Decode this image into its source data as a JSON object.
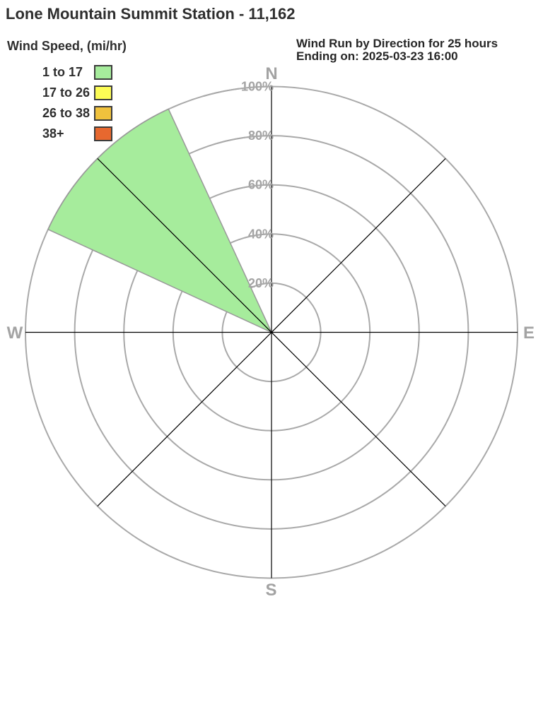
{
  "title": "Lone Mountain Summit Station - 11,162",
  "legend": {
    "title": "Wind Speed, (mi/hr)",
    "bins": [
      {
        "label": "1 to 17",
        "color": "#a6ec9c"
      },
      {
        "label": "17 to 26",
        "color": "#fcfc55"
      },
      {
        "label": "26 to 38",
        "color": "#f0c23d"
      },
      {
        "label": "38+",
        "color": "#e7682f"
      }
    ]
  },
  "header_right": {
    "line1": "Wind Run by Direction for 25 hours",
    "line2": "Ending on: 2025-03-23 16:00"
  },
  "chart_data": {
    "type": "wind_rose",
    "title": "Wind Run by Direction for 25 hours",
    "subtitle": "Ending on: 2025-03-23 16:00",
    "value_unit": "percent of wind run",
    "compass_labels": [
      "N",
      "E",
      "S",
      "W"
    ],
    "radial_axis": {
      "ticks": [
        "20%",
        "40%",
        "60%",
        "80%",
        "100%"
      ],
      "tick_values": [
        20,
        40,
        60,
        80,
        100
      ],
      "range": [
        0,
        100
      ]
    },
    "directions": [
      "N",
      "NE",
      "E",
      "SE",
      "S",
      "SW",
      "W",
      "NW"
    ],
    "sector_width_deg": 40.5,
    "series": [
      {
        "name": "1 to 17",
        "color": "#a6ec9c",
        "values": [
          0,
          0,
          0,
          0,
          0,
          0,
          0,
          100
        ]
      },
      {
        "name": "17 to 26",
        "color": "#fcfc55",
        "values": [
          0,
          0,
          0,
          0,
          0,
          0,
          0,
          0
        ]
      },
      {
        "name": "26 to 38",
        "color": "#f0c23d",
        "values": [
          0,
          0,
          0,
          0,
          0,
          0,
          0,
          0
        ]
      },
      {
        "name": "38+",
        "color": "#e7682f",
        "values": [
          0,
          0,
          0,
          0,
          0,
          0,
          0,
          0
        ]
      }
    ],
    "grid": {
      "rings": 5,
      "spoke_step_deg": 45,
      "ring_color": "#a9a9a9",
      "spoke_color": "#000000",
      "label_color": "#a3a3a3",
      "sector_outline_color": "#999999"
    }
  }
}
